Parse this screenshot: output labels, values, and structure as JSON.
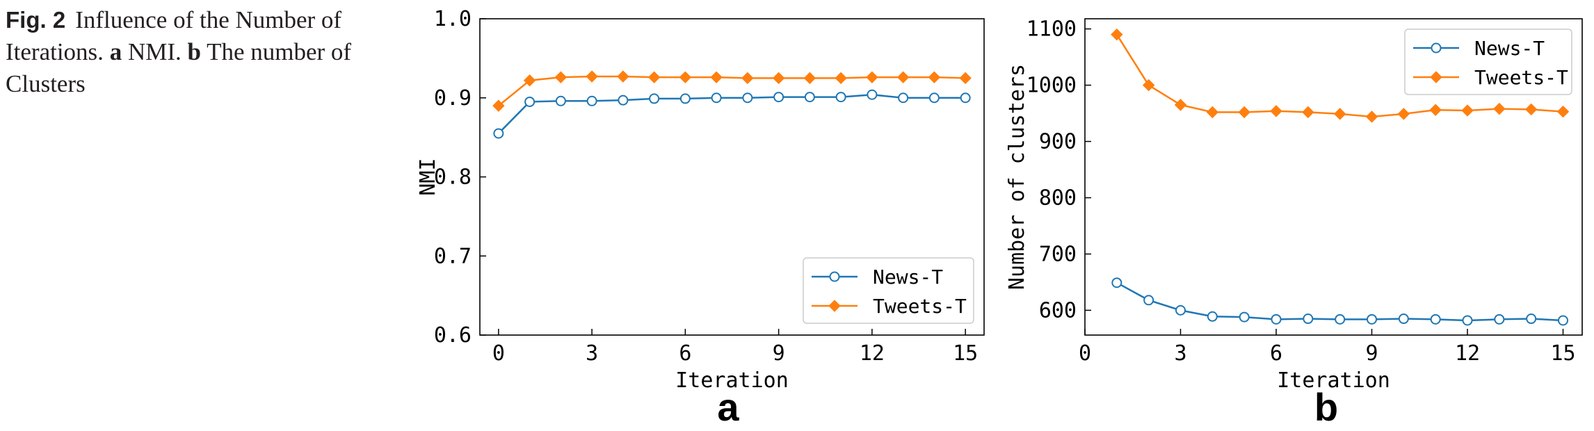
{
  "caption": {
    "fig_label": "Fig. 2",
    "text_1": "Influence of the Number of Iterations. ",
    "a_label": "a",
    "text_2": " NMI. ",
    "b_label": "b",
    "text_3": " The number of Clusters"
  },
  "colors": {
    "news": "#1f77b4",
    "tweets": "#ff7f0e"
  },
  "chart_data": [
    {
      "type": "line",
      "panel_label": "a",
      "xlabel": "Iteration",
      "ylabel": "NMI",
      "xlim": [
        -0.6,
        15.6
      ],
      "ylim": [
        0.6,
        1.0
      ],
      "xticks": [
        0,
        3,
        6,
        9,
        12,
        15
      ],
      "yticks": [
        0.6,
        0.7,
        0.8,
        0.9,
        1.0
      ],
      "ytick_labels": [
        "0.6",
        "0.7",
        "0.8",
        "0.9",
        "1.0"
      ],
      "legend_position": "lower-right",
      "series": [
        {
          "name": "News-T",
          "marker": "circle-open",
          "x": [
            0,
            1,
            2,
            3,
            4,
            5,
            6,
            7,
            8,
            9,
            10,
            11,
            12,
            13,
            14,
            15
          ],
          "y": [
            0.855,
            0.895,
            0.896,
            0.896,
            0.897,
            0.899,
            0.899,
            0.9,
            0.9,
            0.901,
            0.901,
            0.901,
            0.904,
            0.9,
            0.9,
            0.9
          ]
        },
        {
          "name": "Tweets-T",
          "marker": "diamond-filled",
          "x": [
            0,
            1,
            2,
            3,
            4,
            5,
            6,
            7,
            8,
            9,
            10,
            11,
            12,
            13,
            14,
            15
          ],
          "y": [
            0.89,
            0.922,
            0.926,
            0.927,
            0.927,
            0.926,
            0.926,
            0.926,
            0.925,
            0.925,
            0.925,
            0.925,
            0.926,
            0.926,
            0.926,
            0.925
          ]
        }
      ]
    },
    {
      "type": "line",
      "panel_label": "b",
      "xlabel": "Iteration",
      "ylabel": "Number of clusters",
      "xlim": [
        0,
        15.6
      ],
      "ylim": [
        556,
        1118
      ],
      "xticks": [
        0,
        3,
        6,
        9,
        12,
        15
      ],
      "yticks": [
        600,
        700,
        800,
        900,
        1000,
        1100
      ],
      "ytick_labels": [
        "600",
        "700",
        "800",
        "900",
        "1000",
        "1100"
      ],
      "legend_position": "top-right",
      "series": [
        {
          "name": "News-T",
          "marker": "circle-open",
          "x": [
            1,
            2,
            3,
            4,
            5,
            6,
            7,
            8,
            9,
            10,
            11,
            12,
            13,
            14,
            15
          ],
          "y": [
            649,
            618,
            600,
            589,
            588,
            584,
            585,
            584,
            584,
            585,
            584,
            582,
            584,
            585,
            582
          ]
        },
        {
          "name": "Tweets-T",
          "marker": "diamond-filled",
          "x": [
            1,
            2,
            3,
            4,
            5,
            6,
            7,
            8,
            9,
            10,
            11,
            12,
            13,
            14,
            15
          ],
          "y": [
            1090,
            1000,
            965,
            952,
            952,
            954,
            952,
            949,
            944,
            949,
            956,
            955,
            958,
            957,
            953
          ]
        }
      ]
    }
  ]
}
